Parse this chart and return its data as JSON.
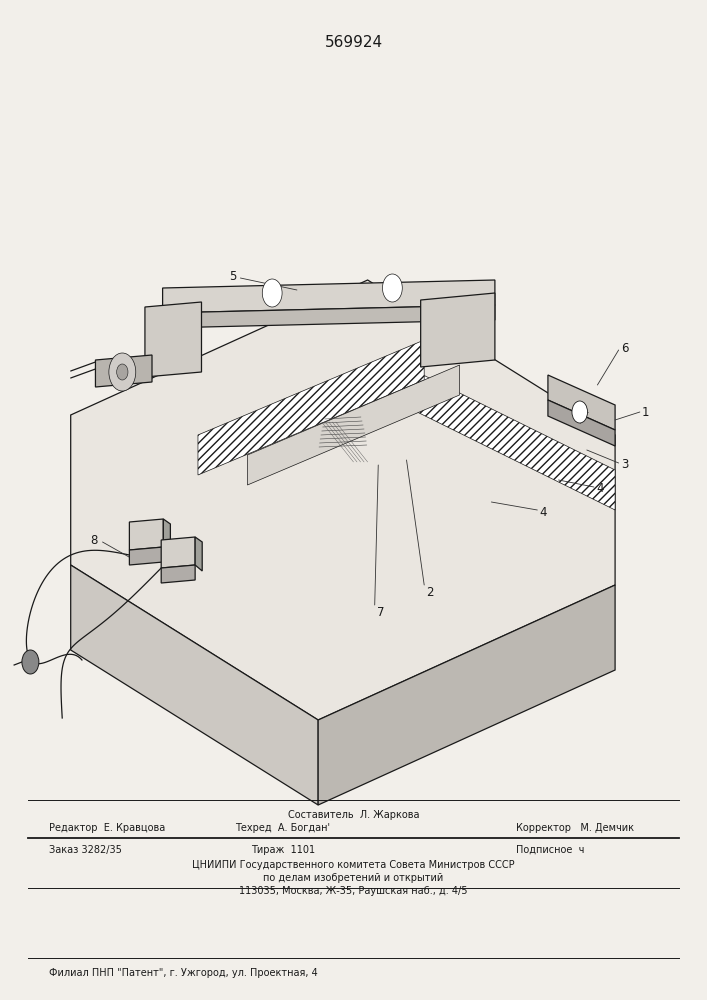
{
  "patent_number": "569924",
  "patent_number_fontsize": 11,
  "footer_sestavitel": "Составитель  Л. Жаркова",
  "footer_redaktor": "Редактор  Е. Кравцова",
  "footer_tehred": "Техред  А. Богдан'",
  "footer_korrektor": "Корректор   М. Демчик",
  "footer_zakaz": "Заказ 3282/35",
  "footer_tirazh": "Тираж  1101",
  "footer_podpisnoe": "Подписное  ч",
  "footer_cniip1": "ЦНИИПИ Государственного комитета Совета Министров СССР",
  "footer_cniip2": "по делам изобретений и открытий",
  "footer_cniip3": "113035, Москва, Ж-35, Раушская наб., д. 4/5",
  "footer_filial": "Филиал ПНП \"Патент\", г. Ужгород, ул. Проектная, 4",
  "bg_color": "#f2efea",
  "line_color": "#1a1a1a",
  "text_color": "#1a1a1a"
}
